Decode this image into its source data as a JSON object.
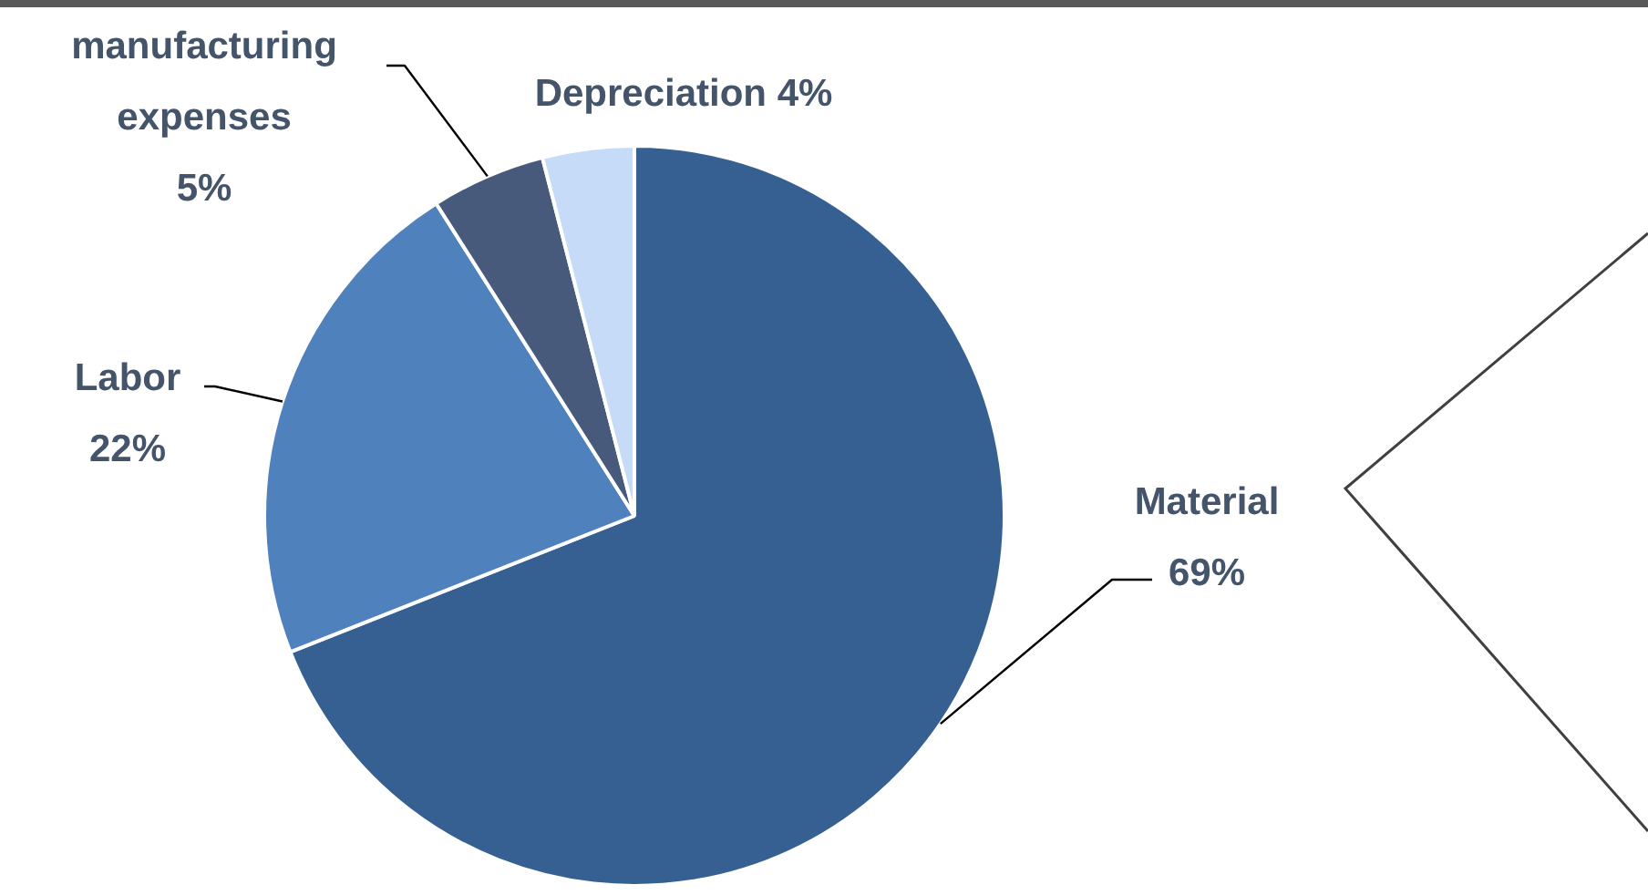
{
  "chart_data": {
    "type": "pie",
    "categories": [
      "Material",
      "Labor",
      "manufacturing expenses",
      "Depreciation"
    ],
    "values": [
      69,
      22,
      5,
      4
    ],
    "colors": [
      "#366092",
      "#4f81bd",
      "#475a7b",
      "#c6dbf7"
    ],
    "value_labels": [
      "69%",
      "22%",
      "5%",
      "4%"
    ]
  }
}
